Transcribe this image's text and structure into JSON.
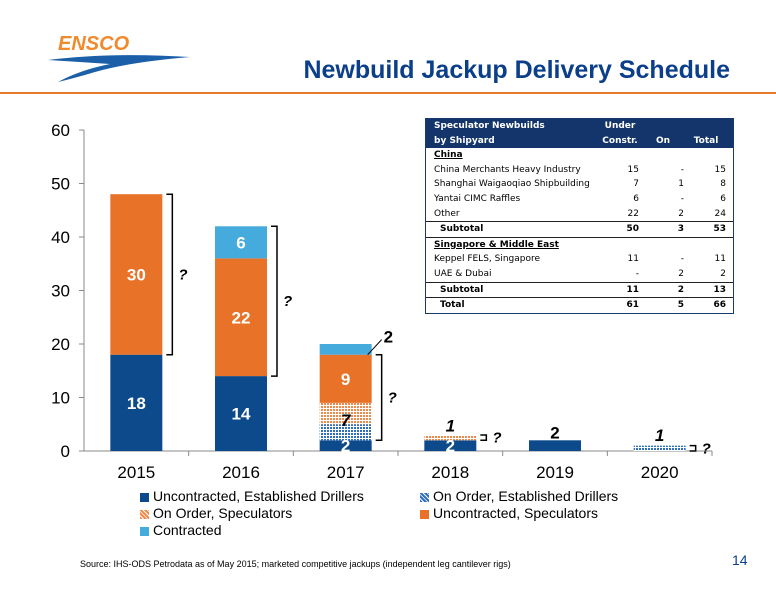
{
  "logo_text": "ENSCO",
  "title": "Newbuild Jackup Delivery Schedule",
  "chart_data": {
    "type": "bar",
    "stacked": true,
    "categories": [
      "2015",
      "2016",
      "2017",
      "2018",
      "2019",
      "2020"
    ],
    "ylim": [
      0,
      60
    ],
    "yticks": [
      0,
      10,
      20,
      30,
      40,
      50,
      60
    ],
    "series": [
      {
        "name": "Uncontracted, Established Drillers",
        "color": "#0d4a8c",
        "pattern": false,
        "values": [
          18,
          14,
          2,
          2,
          2,
          0
        ]
      },
      {
        "name": "On Order, Established Drillers",
        "color": "#3a78c2",
        "pattern": true,
        "values": [
          0,
          0,
          3,
          0,
          0,
          1
        ]
      },
      {
        "name": "On Order, Speculators",
        "color": "#f0a878",
        "pattern": true,
        "values": [
          0,
          0,
          4,
          1,
          0,
          0
        ]
      },
      {
        "name": "Uncontracted, Speculators",
        "color": "#e87227",
        "pattern": false,
        "values": [
          30,
          22,
          9,
          0,
          0,
          0
        ]
      },
      {
        "name": "Contracted",
        "color": "#45aadc",
        "pattern": false,
        "values": [
          0,
          6,
          2,
          0,
          0,
          0
        ]
      }
    ],
    "labels": [
      {
        "cat": 0,
        "value": 18,
        "y": 9,
        "color": "#ffffff",
        "italic": false
      },
      {
        "cat": 0,
        "value": 30,
        "y": 33,
        "color": "#ffffff",
        "italic": false
      },
      {
        "cat": 1,
        "value": 14,
        "y": 7,
        "color": "#ffffff",
        "italic": false
      },
      {
        "cat": 1,
        "value": 22,
        "y": 25,
        "color": "#ffffff",
        "italic": false
      },
      {
        "cat": 1,
        "value": 6,
        "y": 39,
        "color": "#ffffff",
        "italic": false
      },
      {
        "cat": 2,
        "value": 2,
        "y": 1,
        "color": "#ffffff",
        "italic": false
      },
      {
        "cat": 2,
        "value": 7,
        "y": 5.8,
        "color": "#000000",
        "italic": true
      },
      {
        "cat": 2,
        "value": 9,
        "y": 13.5,
        "color": "#ffffff",
        "italic": false
      },
      {
        "cat": 3,
        "value": 2,
        "y": 1,
        "color": "#ffffff",
        "italic": false
      },
      {
        "cat": 3,
        "value": 1,
        "y": 4.8,
        "color": "#000000",
        "italic": true
      },
      {
        "cat": 4,
        "value": 2,
        "y": 3.5,
        "color": "#000000",
        "italic": false
      },
      {
        "cat": 5,
        "value": 1,
        "y": 3,
        "color": "#000000",
        "italic": true
      }
    ],
    "outside_labels": [
      {
        "cat": 2,
        "value": 2,
        "y": 21
      }
    ],
    "brackets": [
      {
        "cat": 0,
        "from": 18,
        "to": 48,
        "label": "?"
      },
      {
        "cat": 1,
        "from": 14,
        "to": 42,
        "label": "?"
      },
      {
        "cat": 2,
        "from": 2,
        "to": 18,
        "label": "?"
      },
      {
        "cat": 3,
        "from": 2,
        "to": 3,
        "label": "?"
      },
      {
        "cat": 5,
        "from": 0,
        "to": 1,
        "label": "?"
      }
    ]
  },
  "table": {
    "header1": [
      "Speculator Newbuilds",
      "Under",
      "",
      ""
    ],
    "header2": [
      "by Shipyard",
      "Constr.",
      "On Order",
      "Total"
    ],
    "section1": "China",
    "rows1": [
      [
        "China Merchants Heavy Industry",
        "15",
        "-",
        "15"
      ],
      [
        "Shanghai Waigaoqiao Shipbuilding",
        "7",
        "1",
        "8"
      ],
      [
        "Yantai CIMC Raffles",
        "6",
        "-",
        "6"
      ],
      [
        "Other",
        "22",
        "2",
        "24"
      ]
    ],
    "subtotal1": [
      "Subtotal",
      "50",
      "3",
      "53"
    ],
    "section2": "Singapore & Middle East",
    "rows2": [
      [
        "Keppel FELS, Singapore",
        "11",
        "-",
        "11"
      ],
      [
        "UAE & Dubai",
        "-",
        "2",
        "2"
      ]
    ],
    "subtotal2": [
      "Subtotal",
      "11",
      "2",
      "13"
    ],
    "total": [
      "Total",
      "61",
      "5",
      "66"
    ]
  },
  "legend": [
    {
      "label": "Uncontracted, Established Drillers",
      "color": "#0d4a8c"
    },
    {
      "label": "On Order, Established Drillers",
      "color": "#3a78c2"
    },
    {
      "label": "On Order, Speculators",
      "color": "#f0a878"
    },
    {
      "label": "Uncontracted, Speculators",
      "color": "#e87227"
    },
    {
      "label": "Contracted",
      "color": "#45aadc"
    }
  ],
  "source": "Source: IHS-ODS Petrodata as of May 2015; marketed competitive jackups (independent leg cantilever rigs)",
  "page_number": "14"
}
